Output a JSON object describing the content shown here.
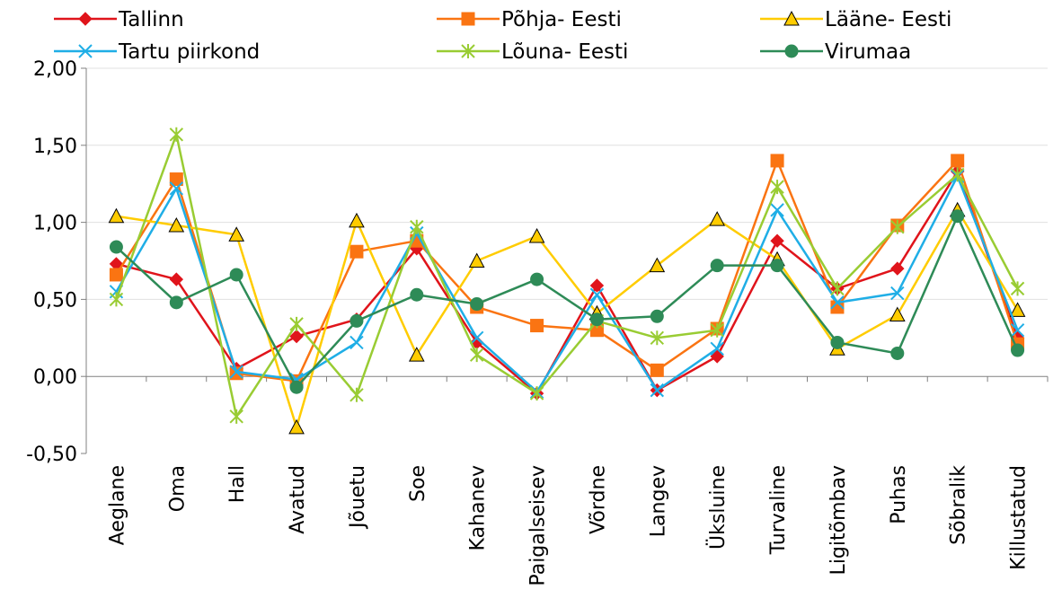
{
  "chart_data": {
    "type": "line",
    "title": "",
    "xlabel": "",
    "ylabel": "",
    "ylim": [
      -0.5,
      2.0
    ],
    "y_ticks": [
      "2,00",
      "1,50",
      "1,00",
      "0,50",
      "0,00",
      "-0,50"
    ],
    "y_tick_values": [
      2.0,
      1.5,
      1.0,
      0.5,
      0.0,
      -0.5
    ],
    "grid": true,
    "legend_position": "top",
    "categories": [
      "Aeglane",
      "Oma",
      "Hall",
      "Avatud",
      "Jõuetu",
      "Soe",
      "Kahanev",
      "Paigalseisev",
      "Võrdne",
      "Langev",
      "Üksluine",
      "Turvaline",
      "Ligitõmbav",
      "Puhas",
      "Sõbralik",
      "Killustatud"
    ],
    "series": [
      {
        "name": "Tallinn",
        "color": "#e0141b",
        "marker": "diamond",
        "values": [
          0.73,
          0.63,
          0.05,
          0.26,
          0.37,
          0.83,
          0.22,
          -0.11,
          0.59,
          -0.09,
          0.13,
          0.88,
          0.57,
          0.7,
          1.33,
          0.25
        ]
      },
      {
        "name": "Põhja- Eesti",
        "color": "#fa7412",
        "marker": "square",
        "values": [
          0.66,
          1.28,
          0.02,
          -0.03,
          0.81,
          0.88,
          0.45,
          0.33,
          0.3,
          0.04,
          0.31,
          1.4,
          0.45,
          0.98,
          1.4,
          0.21
        ]
      },
      {
        "name": "Lääne- Eesti",
        "color": "#ffcc00",
        "marker": "triangle",
        "values": [
          1.04,
          0.98,
          0.92,
          -0.33,
          1.01,
          0.14,
          0.75,
          0.91,
          0.41,
          0.72,
          1.02,
          0.76,
          0.18,
          0.4,
          1.08,
          0.43
        ]
      },
      {
        "name": "Tartu piirkond",
        "color": "#1faee6",
        "marker": "x",
        "values": [
          0.55,
          1.22,
          0.03,
          -0.02,
          0.22,
          0.93,
          0.25,
          -0.1,
          0.53,
          -0.09,
          0.18,
          1.08,
          0.48,
          0.54,
          1.3,
          0.3
        ]
      },
      {
        "name": "Lõuna- Eesti",
        "color": "#99cc33",
        "marker": "star",
        "values": [
          0.5,
          1.57,
          -0.26,
          0.34,
          -0.12,
          0.97,
          0.14,
          -0.11,
          0.36,
          0.25,
          0.3,
          1.23,
          0.57,
          0.97,
          1.31,
          0.57
        ]
      },
      {
        "name": "Virumaa",
        "color": "#2e8b57",
        "marker": "circle",
        "values": [
          0.84,
          0.48,
          0.66,
          -0.07,
          0.36,
          0.53,
          0.47,
          0.63,
          0.37,
          0.39,
          0.72,
          0.72,
          0.22,
          0.15,
          1.04,
          0.17
        ]
      }
    ]
  }
}
